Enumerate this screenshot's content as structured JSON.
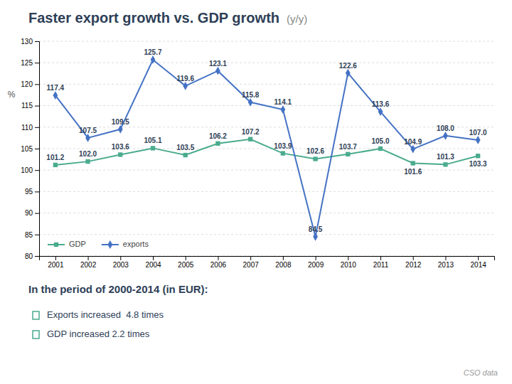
{
  "chart_data": {
    "type": "line",
    "title": "Faster export growth vs. GDP growth",
    "subtitle": "(y/y)",
    "y_label": "%",
    "x": [
      2001,
      2002,
      2003,
      2004,
      2005,
      2006,
      2007,
      2008,
      2009,
      2010,
      2011,
      2012,
      2013,
      2014
    ],
    "series": [
      {
        "name": "GDP",
        "color": "#4aab8e",
        "marker": "square",
        "values": [
          101.2,
          102.0,
          103.6,
          105.1,
          103.5,
          106.2,
          107.2,
          103.9,
          102.6,
          103.7,
          105.0,
          101.6,
          101.3,
          103.3
        ],
        "value_labels": [
          "101.2",
          "102.0",
          "103.6",
          "105.1",
          "103.5",
          "106.2",
          "107.2",
          "103.9",
          "102.6",
          "103.7",
          "105.0",
          "101.6",
          "101.3",
          "103.3"
        ]
      },
      {
        "name": "exports",
        "color": "#4472c4",
        "marker": "diamond",
        "values": [
          117.4,
          107.5,
          109.5,
          125.7,
          119.6,
          123.1,
          115.8,
          114.1,
          84.5,
          122.6,
          113.6,
          104.9,
          108.0,
          107.0
        ],
        "value_labels": [
          "117.4",
          "107.5",
          "109.5",
          "125.7",
          "119.6",
          "123.1",
          "115.8",
          "114.1",
          "84.5",
          "122.6",
          "113.6",
          "104.9",
          "108.0",
          "107.0"
        ]
      }
    ],
    "xlim": [
      2000.5,
      2014.5
    ],
    "xticks": [
      2001,
      2002,
      2003,
      2004,
      2005,
      2006,
      2007,
      2008,
      2009,
      2010,
      2011,
      2012,
      2013,
      2014
    ],
    "ylim": [
      80,
      130
    ],
    "yticks": [
      80,
      85,
      90,
      95,
      100,
      105,
      110,
      115,
      120,
      125,
      130
    ],
    "grid": true,
    "legend": "lower left",
    "data_labels": true,
    "annotations": [
      "In the period of 2000-2014 (in EUR):",
      "Exports increased  4.8 times",
      "GDP increased 2.2 times",
      "CSO data"
    ]
  }
}
